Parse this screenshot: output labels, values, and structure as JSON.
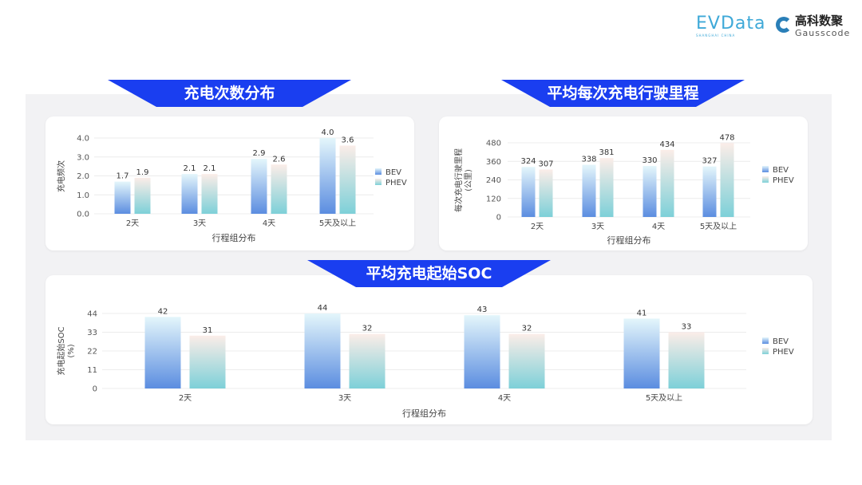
{
  "logos": {
    "evdata": "EVData",
    "evdata_sub": "SHANGHAI CHINA",
    "gauss_cn": "高科数聚",
    "gauss_en": "Gausscode"
  },
  "colors": {
    "banner": "#1a3ef0",
    "bev_top": "#e4f6fb",
    "bev_bottom": "#5b8de0",
    "phev_top": "#fbede8",
    "phev_bottom": "#7dd0d8"
  },
  "chart_data": [
    {
      "type": "bar",
      "title": "充电次数分布",
      "categories": [
        "2天",
        "3天",
        "4天",
        "5天及以上"
      ],
      "series": [
        {
          "name": "BEV",
          "values": [
            1.7,
            2.1,
            2.9,
            4.0
          ]
        },
        {
          "name": "PHEV",
          "values": [
            1.9,
            2.1,
            2.6,
            3.6
          ]
        }
      ],
      "labels": {
        "BEV": [
          "1.7",
          "2.1",
          "2.9",
          "4.0"
        ],
        "PHEV": [
          "1.9",
          "2.1",
          "2.6",
          "3.6"
        ]
      },
      "xlabel": "行程组分布",
      "ylabel": "充电频次",
      "ylim": [
        0,
        4.0
      ],
      "yticks": [
        "0.0",
        "1.0",
        "2.0",
        "3.0",
        "4.0"
      ],
      "grid": true,
      "legend": "right"
    },
    {
      "type": "bar",
      "title": "平均每次充电行驶里程",
      "categories": [
        "2天",
        "3天",
        "4天",
        "5天及以上"
      ],
      "series": [
        {
          "name": "BEV",
          "values": [
            324,
            338,
            330,
            327
          ]
        },
        {
          "name": "PHEV",
          "values": [
            307,
            381,
            434,
            478
          ]
        }
      ],
      "labels": {
        "BEV": [
          "324",
          "338",
          "330",
          "327"
        ],
        "PHEV": [
          "307",
          "381",
          "434",
          "478"
        ]
      },
      "xlabel": "行程组分布",
      "ylabel": "每次充电行驶里程",
      "ylabel2": "(公里)",
      "ylim": [
        0,
        480
      ],
      "yticks": [
        "0",
        "120",
        "240",
        "360",
        "480"
      ],
      "grid": true,
      "legend": "right"
    },
    {
      "type": "bar",
      "title": "平均充电起始SOC",
      "categories": [
        "2天",
        "3天",
        "4天",
        "5天及以上"
      ],
      "series": [
        {
          "name": "BEV",
          "values": [
            42,
            44,
            43,
            41
          ]
        },
        {
          "name": "PHEV",
          "values": [
            31,
            32,
            32,
            33
          ]
        }
      ],
      "labels": {
        "BEV": [
          "42",
          "44",
          "43",
          "41"
        ],
        "PHEV": [
          "31",
          "32",
          "32",
          "33"
        ]
      },
      "xlabel": "行程组分布",
      "ylabel": "充电起始SOC",
      "ylabel2": "(%)",
      "ylim": [
        0,
        44
      ],
      "yticks": [
        "0",
        "11",
        "22",
        "33",
        "44"
      ],
      "grid": true,
      "legend": "right"
    }
  ]
}
